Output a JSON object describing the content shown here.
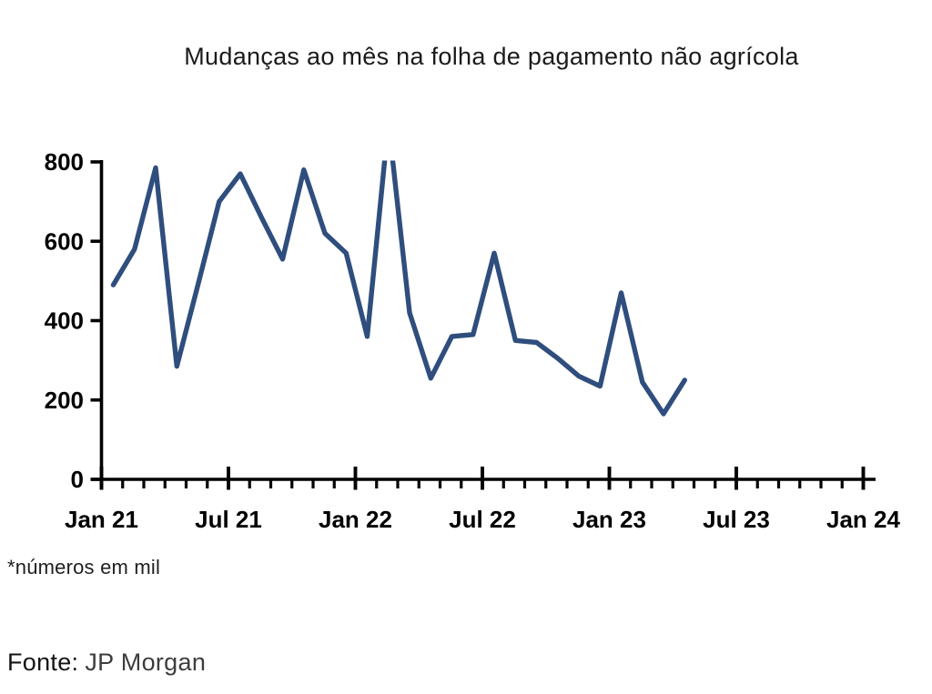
{
  "page": {
    "source_label": "Fonte:",
    "source_value": "JP Morgan"
  },
  "chart_data": {
    "type": "line",
    "title": "Mudanças ao mês na folha de pagamento não agrícola",
    "unit_note": "*números em mil",
    "source": "JP Morgan",
    "series_name": "Mudança mensal na folha de pagamento não agrícola (mil)",
    "x": [
      "Jan 21",
      "Feb 21",
      "Mar 21",
      "Apr 21",
      "May 21",
      "Jun 21",
      "Jul 21",
      "Aug 21",
      "Sep 21",
      "Oct 21",
      "Nov 21",
      "Dec 21",
      "Jan 22",
      "Feb 22",
      "Mar 22",
      "Apr 22",
      "May 22",
      "Jun 22",
      "Jul 22",
      "Aug 22",
      "Sep 22",
      "Oct 22",
      "Nov 22",
      "Dec 22",
      "Jan 23",
      "Feb 23",
      "Mar 23",
      "Apr 23"
    ],
    "values": [
      490,
      580,
      785,
      285,
      490,
      700,
      770,
      660,
      555,
      780,
      620,
      570,
      360,
      900,
      420,
      255,
      360,
      365,
      570,
      350,
      345,
      305,
      260,
      235,
      470,
      245,
      165,
      250
    ],
    "xlabel": "",
    "ylabel": "",
    "ylim": [
      0,
      800
    ],
    "x_axis": {
      "major_tick_labels": [
        "Jan 21",
        "Jul 21",
        "Jan 22",
        "Jul 22",
        "Jan 23",
        "Jul 23",
        "Jan 24"
      ],
      "minor_tick_interval": "1 month",
      "range": [
        "Jan 21",
        "Jan 24"
      ]
    },
    "y_axis": {
      "tick_values": [
        0,
        200,
        400,
        600,
        800
      ],
      "tick_labels": [
        "0",
        "200",
        "400",
        "600",
        "800"
      ]
    },
    "grid": "off",
    "legend": "none",
    "line_color": "#2F4E7D",
    "axis_color": "#000000",
    "clipped_note": "Feb 22 apex (~900) is clipped at the 800 axis maximum"
  }
}
